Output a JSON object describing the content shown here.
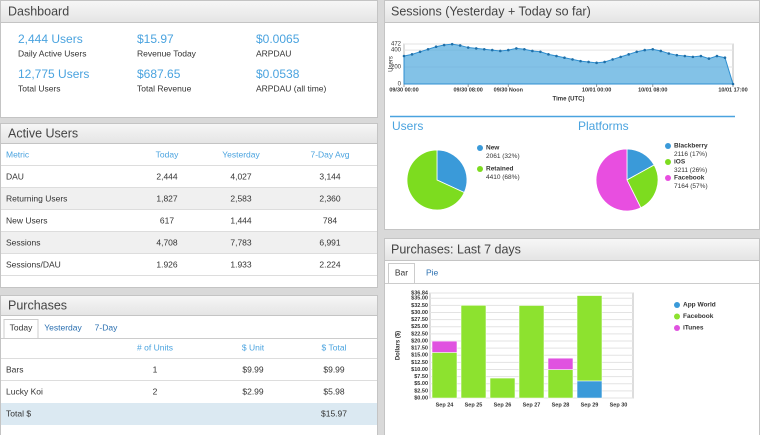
{
  "dashboard": {
    "title": "Dashboard",
    "stats": [
      {
        "value": "2,444 Users",
        "label": "Daily Active Users"
      },
      {
        "value": "$15.97",
        "label": "Revenue Today"
      },
      {
        "value": "$0.0065",
        "label": "ARPDAU"
      },
      {
        "value": "12,775 Users",
        "label": "Total Users"
      },
      {
        "value": "$687.65",
        "label": "Total Revenue"
      },
      {
        "value": "$0.0538",
        "label": "ARPDAU (all time)"
      }
    ]
  },
  "active_users": {
    "title": "Active Users",
    "columns": [
      "Metric",
      "Today",
      "Yesterday",
      "7-Day Avg"
    ],
    "rows": [
      [
        "DAU",
        "2,444",
        "4,027",
        "3,144"
      ],
      [
        "Returning Users",
        "1,827",
        "2,583",
        "2,360"
      ],
      [
        "New Users",
        "617",
        "1,444",
        "784"
      ],
      [
        "Sessions",
        "4,708",
        "7,783",
        "6,991"
      ],
      [
        "Sessions/DAU",
        "1.926",
        "1.933",
        "2.224"
      ]
    ]
  },
  "purchases": {
    "title": "Purchases",
    "tabs": [
      "Today",
      "Yesterday",
      "7-Day"
    ],
    "columns": [
      "# of Units",
      "$ Unit",
      "$ Total"
    ],
    "rows": [
      [
        "Bars",
        "1",
        "$9.99",
        "$9.99"
      ],
      [
        "Lucky Koi",
        "2",
        "$2.99",
        "$5.98"
      ]
    ],
    "total": {
      "label": "Total $",
      "value": "$15.97"
    }
  },
  "sessions": {
    "title": "Sessions (Yesterday + Today so far)",
    "chart": {
      "type": "area",
      "ylabel": "Users",
      "xlabel": "Time (UTC)",
      "color": "#5aaedf",
      "x": [
        0,
        1,
        2,
        3,
        4,
        5,
        6,
        7,
        8,
        9,
        10,
        11,
        12,
        13,
        14,
        15,
        16,
        17,
        18,
        19,
        20,
        21,
        22,
        23,
        24,
        25,
        26,
        27,
        28,
        29,
        30,
        31,
        32,
        33,
        34,
        35,
        36,
        37,
        38,
        39,
        40,
        41
      ],
      "values": [
        330,
        350,
        380,
        410,
        440,
        460,
        470,
        455,
        430,
        420,
        410,
        400,
        390,
        400,
        420,
        410,
        390,
        380,
        350,
        330,
        310,
        290,
        270,
        260,
        250,
        260,
        290,
        320,
        350,
        380,
        400,
        410,
        390,
        360,
        340,
        330,
        320,
        330,
        300,
        330,
        310,
        0
      ],
      "xlim": [
        0,
        41
      ],
      "ylim": [
        0,
        472
      ],
      "yticks": [
        0,
        200,
        400,
        472
      ],
      "xticks": [
        {
          "value": 0,
          "label": "09/30 00:00"
        },
        {
          "value": 8,
          "label": "09/30 08:00"
        },
        {
          "value": 13,
          "label": "09/30 Noon"
        },
        {
          "value": 24,
          "label": "10/01 00:00"
        },
        {
          "value": 31,
          "label": "10/01 08:00"
        },
        {
          "value": 41,
          "label": "10/01 17:00"
        }
      ]
    },
    "users": {
      "title": "Users",
      "chart": {
        "type": "pie",
        "categories": [
          "New",
          "Retained"
        ],
        "values": [
          2061,
          4410
        ],
        "value_labels": [
          "2061 (32%)",
          "4410 (68%)"
        ],
        "colors": [
          "#3a9ad9",
          "#7ddc1f"
        ]
      }
    },
    "platforms": {
      "title": "Platforms",
      "chart": {
        "type": "pie",
        "categories": [
          "Blackberry",
          "iOS",
          "Facebook"
        ],
        "values": [
          2116,
          3211,
          7164
        ],
        "value_labels": [
          "2116 (17%)",
          "3211 (26%)",
          "7164 (57%)"
        ],
        "colors": [
          "#3a9ad9",
          "#7ddc1f",
          "#e84ee0"
        ]
      }
    }
  },
  "purchases_7d": {
    "title": "Purchases: Last 7 days",
    "tabs": [
      "Bar",
      "Pie"
    ],
    "chart": {
      "type": "bar",
      "stacked": true,
      "ylabel": "Dollars ($)",
      "categories": [
        "Sep 24",
        "Sep 25",
        "Sep 26",
        "Sep 27",
        "Sep 28",
        "Sep 29",
        "Sep 30"
      ],
      "series": [
        {
          "name": "App World",
          "color": "#3a9ad9",
          "values": [
            0,
            0,
            0,
            0,
            0,
            5.99,
            0
          ]
        },
        {
          "name": "Facebook",
          "color": "#8de22f",
          "values": [
            15.97,
            32.5,
            6.99,
            32.45,
            9.98,
            29.95,
            0
          ]
        },
        {
          "name": "iTunes",
          "color": "#e052e0",
          "values": [
            3.99,
            0,
            0,
            0,
            3.99,
            0,
            0
          ]
        }
      ],
      "ylim": [
        0,
        36.84
      ],
      "yticks": [
        {
          "value": 0,
          "label": "$0.00"
        },
        {
          "value": 2.5,
          "label": "$2.50"
        },
        {
          "value": 5,
          "label": "$5.00"
        },
        {
          "value": 7.5,
          "label": "$7.50"
        },
        {
          "value": 10,
          "label": "$10.00"
        },
        {
          "value": 12.5,
          "label": "$12.50"
        },
        {
          "value": 15,
          "label": "$15.00"
        },
        {
          "value": 17.5,
          "label": "$17.50"
        },
        {
          "value": 20,
          "label": "$20.00"
        },
        {
          "value": 22.5,
          "label": "$22.50"
        },
        {
          "value": 25,
          "label": "$25.00"
        },
        {
          "value": 27.5,
          "label": "$27.50"
        },
        {
          "value": 30,
          "label": "$30.00"
        },
        {
          "value": 32.5,
          "label": "$32.50"
        },
        {
          "value": 35,
          "label": "$35.00"
        },
        {
          "value": 36.84,
          "label": "$36.84"
        }
      ]
    }
  }
}
